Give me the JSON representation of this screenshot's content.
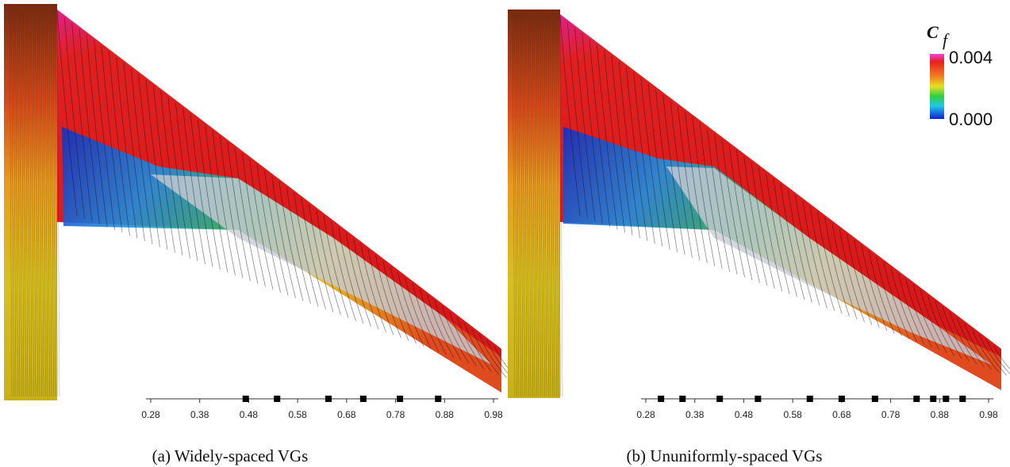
{
  "chart_data": [
    {
      "type": "strip",
      "caption": "(a) Widely-spaced VGs",
      "x": [
        0.474,
        0.538,
        0.643,
        0.714,
        0.789,
        0.867
      ],
      "xlim": [
        0.27,
        0.99
      ],
      "xticks": [
        0.28,
        0.38,
        0.48,
        0.58,
        0.68,
        0.78,
        0.88,
        0.98
      ],
      "color": "#000000"
    },
    {
      "type": "strip",
      "caption": "(b) Ununiformly-spaced VGs",
      "x": [
        0.311,
        0.355,
        0.431,
        0.509,
        0.615,
        0.68,
        0.748,
        0.833,
        0.867,
        0.893,
        0.927
      ],
      "xlim": [
        0.27,
        0.99
      ],
      "xticks": [
        0.28,
        0.38,
        0.48,
        0.58,
        0.68,
        0.78,
        0.88,
        0.98
      ],
      "color": "#000000"
    }
  ],
  "colorbar": {
    "label": "C",
    "label_subscript": "f",
    "lim": [
      0,
      0.004
    ],
    "ticks": [
      {
        "value": 0.004,
        "label": "0.004"
      },
      {
        "value": 0,
        "label": "0.000"
      }
    ]
  }
}
